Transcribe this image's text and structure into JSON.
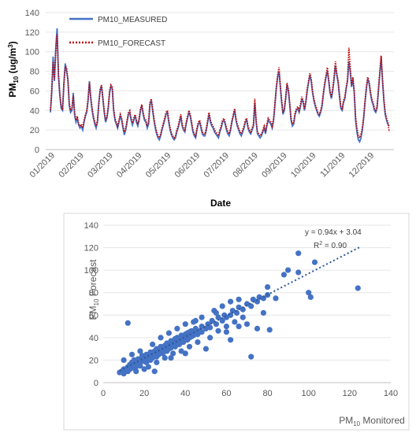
{
  "charts": [
    {
      "type": "line",
      "title": "",
      "xlabel": "Date",
      "ylabel_main": "PM",
      "ylabel_sub": "10",
      "ylabel_rest": " (ug/m",
      "ylabel_sup": "3",
      "ylabel_end": ")",
      "ylim": [
        0,
        140
      ],
      "yticks": [
        0,
        20,
        40,
        60,
        80,
        100,
        120,
        140
      ],
      "months": [
        "01/2019",
        "02/2019",
        "03/2019",
        "04/2019",
        "05/2019",
        "06/2019",
        "07/2019",
        "08/2019",
        "09/2019",
        "10/2019",
        "11/2019",
        "12/2019"
      ],
      "grid": "horizontal",
      "legend_position": "top-left",
      "series": [
        {
          "name": "PM10_MEASURED",
          "color": "#4472C4",
          "style": "solid",
          "values": [
            38,
            58,
            95,
            70,
            105,
            124,
            75,
            55,
            42,
            40,
            68,
            88,
            80,
            72,
            45,
            38,
            40,
            58,
            35,
            28,
            32,
            25,
            22,
            24,
            20,
            28,
            34,
            38,
            50,
            70,
            52,
            40,
            32,
            26,
            22,
            28,
            48,
            60,
            65,
            52,
            38,
            28,
            32,
            42,
            58,
            65,
            62,
            40,
            30,
            26,
            22,
            28,
            35,
            30,
            22,
            15,
            20,
            28,
            36,
            38,
            30,
            25,
            30,
            35,
            28,
            24,
            30,
            40,
            45,
            36,
            30,
            28,
            22,
            26,
            46,
            50,
            40,
            30,
            22,
            16,
            12,
            10,
            14,
            20,
            25,
            30,
            36,
            38,
            28,
            20,
            15,
            12,
            10,
            12,
            18,
            22,
            28,
            34,
            24,
            20,
            18,
            26,
            32,
            38,
            34,
            26,
            18,
            14,
            12,
            20,
            26,
            28,
            22,
            16,
            14,
            14,
            20,
            28,
            36,
            28,
            24,
            22,
            18,
            16,
            14,
            12,
            18,
            22,
            28,
            30,
            26,
            20,
            16,
            14,
            20,
            28,
            34,
            40,
            30,
            24,
            20,
            16,
            14,
            18,
            22,
            28,
            30,
            22,
            18,
            16,
            20,
            24,
            48,
            28,
            16,
            14,
            12,
            14,
            18,
            22,
            16,
            24,
            30,
            28,
            26,
            22,
            30,
            46,
            62,
            74,
            80,
            64,
            48,
            36,
            40,
            52,
            66,
            60,
            46,
            30,
            24,
            26,
            36,
            40,
            42,
            38,
            44,
            52,
            48,
            40,
            48,
            60,
            68,
            76,
            70,
            58,
            50,
            44,
            40,
            36,
            34,
            38,
            44,
            56,
            66,
            74,
            80,
            70,
            58,
            52,
            60,
            72,
            86,
            76,
            68,
            54,
            42,
            40,
            48,
            52,
            62,
            70,
            90,
            80,
            64,
            72,
            58,
            30,
            18,
            10,
            8,
            12,
            20,
            32,
            48,
            62,
            72,
            68,
            58,
            50,
            46,
            40,
            38,
            42,
            60,
            78,
            94,
            70,
            50,
            36,
            30,
            26,
            24
          ]
        },
        {
          "name": "PM10_FORECAST",
          "color": "#C00000",
          "style": "dotted",
          "values": [
            40,
            62,
            90,
            72,
            100,
            118,
            78,
            58,
            44,
            42,
            66,
            85,
            84,
            70,
            48,
            40,
            42,
            55,
            38,
            30,
            34,
            26,
            24,
            26,
            22,
            30,
            36,
            40,
            52,
            68,
            54,
            42,
            34,
            28,
            24,
            30,
            46,
            62,
            66,
            54,
            40,
            30,
            34,
            44,
            60,
            66,
            64,
            42,
            32,
            28,
            24,
            30,
            36,
            32,
            24,
            18,
            22,
            30,
            38,
            40,
            32,
            27,
            32,
            36,
            30,
            26,
            32,
            42,
            46,
            38,
            32,
            30,
            24,
            28,
            48,
            52,
            42,
            32,
            24,
            18,
            14,
            12,
            16,
            22,
            27,
            32,
            38,
            40,
            30,
            22,
            17,
            14,
            12,
            14,
            20,
            24,
            30,
            36,
            26,
            22,
            20,
            28,
            34,
            40,
            36,
            28,
            20,
            16,
            14,
            22,
            28,
            30,
            24,
            18,
            16,
            16,
            22,
            30,
            38,
            30,
            26,
            24,
            20,
            18,
            16,
            14,
            20,
            24,
            30,
            32,
            28,
            22,
            18,
            16,
            22,
            30,
            36,
            42,
            32,
            26,
            22,
            18,
            16,
            20,
            24,
            30,
            32,
            24,
            20,
            18,
            22,
            26,
            52,
            30,
            18,
            16,
            14,
            16,
            20,
            24,
            18,
            26,
            32,
            30,
            28,
            24,
            32,
            48,
            64,
            76,
            84,
            66,
            50,
            38,
            42,
            54,
            68,
            62,
            48,
            32,
            26,
            28,
            38,
            42,
            44,
            40,
            46,
            54,
            50,
            42,
            50,
            62,
            70,
            78,
            72,
            60,
            52,
            46,
            42,
            38,
            36,
            40,
            46,
            58,
            68,
            76,
            84,
            72,
            60,
            54,
            62,
            74,
            90,
            78,
            70,
            56,
            44,
            42,
            50,
            54,
            64,
            72,
            104,
            84,
            66,
            74,
            60,
            34,
            22,
            14,
            12,
            16,
            22,
            34,
            50,
            64,
            74,
            70,
            60,
            52,
            48,
            42,
            40,
            44,
            62,
            80,
            96,
            72,
            52,
            38,
            32,
            28,
            18
          ]
        }
      ]
    },
    {
      "type": "scatter",
      "title": "",
      "xlabel_main": "PM",
      "xlabel_sub": "10",
      "xlabel_rest": " Monitored",
      "ylabel_main": "PM",
      "ylabel_sub": "10",
      "ylabel_rest": " Forecast",
      "xlim": [
        0,
        140
      ],
      "ylim": [
        0,
        140
      ],
      "xticks": [
        0,
        20,
        40,
        60,
        80,
        100,
        120,
        140
      ],
      "yticks": [
        0,
        20,
        40,
        60,
        80,
        100,
        120,
        140
      ],
      "grid": "horizontal",
      "color": "#4472C4",
      "trendline": {
        "slope": 0.94,
        "intercept": 3.04,
        "x_range": [
          8,
          125
        ],
        "color": "#2E5597"
      },
      "equation_text": "y = 0.94x + 3.04",
      "r2_main": "R",
      "r2_sup": "2",
      "r2_rest": " = 0.90",
      "points": [
        [
          8,
          9
        ],
        [
          9,
          10
        ],
        [
          10,
          8
        ],
        [
          10,
          12
        ],
        [
          11,
          11
        ],
        [
          12,
          10
        ],
        [
          12,
          14
        ],
        [
          13,
          12
        ],
        [
          13,
          16
        ],
        [
          14,
          13
        ],
        [
          14,
          18
        ],
        [
          15,
          15
        ],
        [
          15,
          20
        ],
        [
          16,
          14
        ],
        [
          16,
          17
        ],
        [
          17,
          16
        ],
        [
          17,
          21
        ],
        [
          18,
          18
        ],
        [
          18,
          15
        ],
        [
          19,
          20
        ],
        [
          19,
          24
        ],
        [
          20,
          19
        ],
        [
          20,
          22
        ],
        [
          21,
          18
        ],
        [
          21,
          25
        ],
        [
          22,
          21
        ],
        [
          22,
          23
        ],
        [
          23,
          20
        ],
        [
          23,
          27
        ],
        [
          24,
          22
        ],
        [
          24,
          26
        ],
        [
          25,
          24
        ],
        [
          25,
          28
        ],
        [
          26,
          23
        ],
        [
          26,
          30
        ],
        [
          27,
          25
        ],
        [
          27,
          29
        ],
        [
          28,
          27
        ],
        [
          28,
          32
        ],
        [
          29,
          26
        ],
        [
          29,
          30
        ],
        [
          30,
          29
        ],
        [
          30,
          33
        ],
        [
          31,
          28
        ],
        [
          31,
          35
        ],
        [
          32,
          30
        ],
        [
          32,
          34
        ],
        [
          33,
          31
        ],
        [
          33,
          37
        ],
        [
          34,
          33
        ],
        [
          34,
          36
        ],
        [
          35,
          32
        ],
        [
          35,
          39
        ],
        [
          36,
          35
        ],
        [
          36,
          40
        ],
        [
          37,
          34
        ],
        [
          37,
          38
        ],
        [
          38,
          37
        ],
        [
          38,
          42
        ],
        [
          39,
          36
        ],
        [
          39,
          40
        ],
        [
          40,
          39
        ],
        [
          40,
          43
        ],
        [
          41,
          38
        ],
        [
          41,
          44
        ],
        [
          42,
          40
        ],
        [
          42,
          45
        ],
        [
          43,
          41
        ],
        [
          43,
          46
        ],
        [
          44,
          42
        ],
        [
          45,
          44
        ],
        [
          45,
          48
        ],
        [
          46,
          43
        ],
        [
          47,
          46
        ],
        [
          48,
          45
        ],
        [
          48,
          50
        ],
        [
          50,
          48
        ],
        [
          51,
          52
        ],
        [
          52,
          49
        ],
        [
          53,
          55
        ],
        [
          55,
          52
        ],
        [
          56,
          58
        ],
        [
          58,
          55
        ],
        [
          59,
          60
        ],
        [
          60,
          58
        ],
        [
          62,
          60
        ],
        [
          63,
          64
        ],
        [
          65,
          62
        ],
        [
          66,
          67
        ],
        [
          68,
          65
        ],
        [
          70,
          70
        ],
        [
          72,
          68
        ],
        [
          73,
          74
        ],
        [
          75,
          72
        ],
        [
          76,
          76
        ],
        [
          78,
          75
        ],
        [
          80,
          78
        ],
        [
          12,
          53
        ],
        [
          20,
          12
        ],
        [
          25,
          10
        ],
        [
          33,
          22
        ],
        [
          40,
          26
        ],
        [
          45,
          55
        ],
        [
          50,
          30
        ],
        [
          55,
          62
        ],
        [
          60,
          45
        ],
        [
          62,
          38
        ],
        [
          66,
          50
        ],
        [
          70,
          52
        ],
        [
          72,
          23
        ],
        [
          75,
          48
        ],
        [
          78,
          62
        ],
        [
          80,
          85
        ],
        [
          81,
          47
        ],
        [
          84,
          75
        ],
        [
          88,
          96
        ],
        [
          90,
          100
        ],
        [
          95,
          98
        ],
        [
          95,
          115
        ],
        [
          100,
          80
        ],
        [
          101,
          76
        ],
        [
          103,
          107
        ],
        [
          124,
          84
        ],
        [
          10,
          20
        ],
        [
          14,
          25
        ],
        [
          16,
          10
        ],
        [
          18,
          28
        ],
        [
          22,
          14
        ],
        [
          24,
          34
        ],
        [
          26,
          18
        ],
        [
          28,
          40
        ],
        [
          30,
          22
        ],
        [
          32,
          44
        ],
        [
          34,
          26
        ],
        [
          36,
          48
        ],
        [
          38,
          28
        ],
        [
          40,
          52
        ],
        [
          42,
          32
        ],
        [
          44,
          54
        ],
        [
          46,
          36
        ],
        [
          48,
          58
        ],
        [
          52,
          40
        ],
        [
          54,
          64
        ],
        [
          56,
          46
        ],
        [
          58,
          68
        ],
        [
          60,
          50
        ],
        [
          62,
          72
        ],
        [
          64,
          54
        ],
        [
          66,
          74
        ],
        [
          68,
          58
        ]
      ]
    }
  ]
}
